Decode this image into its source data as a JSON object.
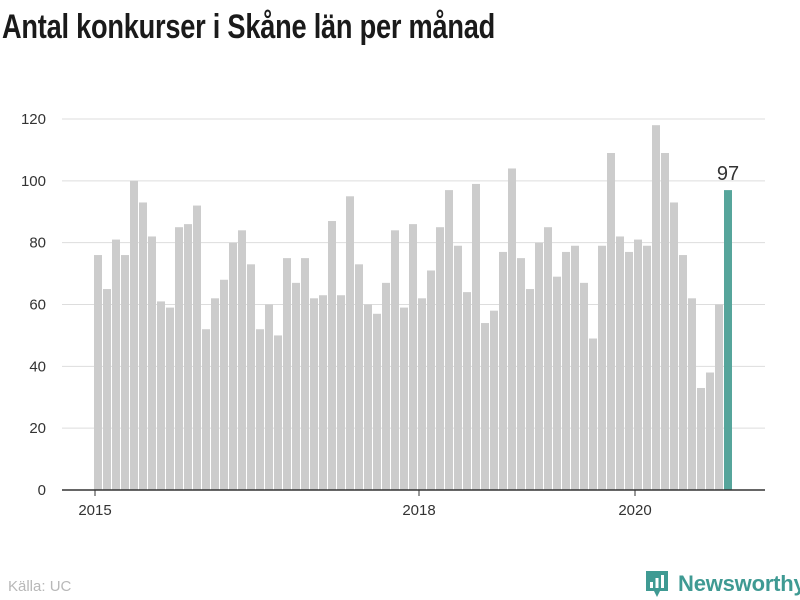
{
  "title": "Antal konkurser i Skåne län per månad",
  "source": "Källa: UC",
  "brand": {
    "name": "Newsworthy",
    "logo_icon": "newsworthy-logo-icon",
    "color": "#3f9a93"
  },
  "chart_data": {
    "type": "bar",
    "ylim": [
      0,
      120
    ],
    "yticks": [
      0,
      20,
      40,
      60,
      80,
      100,
      120
    ],
    "xticks": [
      {
        "label": "2015",
        "index": 0
      },
      {
        "label": "2018",
        "index": 36
      },
      {
        "label": "2020",
        "index": 60
      }
    ],
    "values": [
      76,
      65,
      81,
      76,
      100,
      93,
      82,
      61,
      59,
      85,
      86,
      92,
      52,
      62,
      68,
      80,
      84,
      73,
      52,
      60,
      50,
      75,
      67,
      75,
      62,
      63,
      87,
      63,
      95,
      73,
      60,
      57,
      67,
      84,
      59,
      86,
      62,
      71,
      85,
      97,
      79,
      64,
      99,
      54,
      58,
      77,
      104,
      75,
      65,
      80,
      85,
      69,
      77,
      79,
      67,
      49,
      79,
      109,
      82,
      77,
      81,
      79,
      118,
      109,
      93,
      76,
      62,
      33,
      38,
      60,
      97
    ],
    "highlight_index": 70,
    "highlight_label": "97",
    "bar_color": "#cccccc",
    "highlight_color": "#56a59b",
    "grid": true
  }
}
